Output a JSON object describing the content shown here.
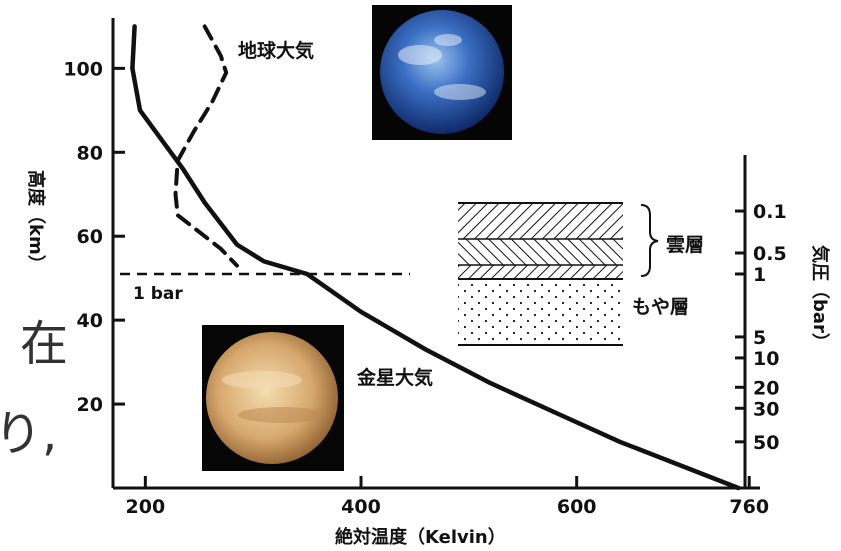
{
  "background_text": {
    "char1": "在",
    "char2": "り,"
  },
  "colors": {
    "ink": "#111111",
    "earth_ocean": "#2f5fb0",
    "venus": "#d9b27a"
  },
  "chart_data": {
    "type": "line",
    "title": "",
    "xlabel": "絶対温度（Kelvin）",
    "ylabel": "高度（km）",
    "y2label": "気圧（bar）",
    "xlim": [
      170,
      770
    ],
    "ylim": [
      0,
      112
    ],
    "x_ticks": [
      200,
      400,
      600,
      760
    ],
    "y_ticks": [
      20,
      40,
      60,
      80,
      100
    ],
    "pressure_ticks": [
      {
        "label": "0.1",
        "alt": 66
      },
      {
        "label": "0.5",
        "alt": 56
      },
      {
        "label": "1",
        "alt": 51
      },
      {
        "label": "5",
        "alt": 36
      },
      {
        "label": "10",
        "alt": 31
      },
      {
        "label": "20",
        "alt": 24
      },
      {
        "label": "30",
        "alt": 19
      },
      {
        "label": "50",
        "alt": 11
      }
    ],
    "series": [
      {
        "name": "金星大気",
        "style": "solid",
        "points": [
          [
            190,
            110
          ],
          [
            188,
            100
          ],
          [
            195,
            90
          ],
          [
            215,
            83
          ],
          [
            235,
            76
          ],
          [
            255,
            68
          ],
          [
            285,
            58
          ],
          [
            310,
            54
          ],
          [
            350,
            51
          ],
          [
            400,
            42
          ],
          [
            460,
            33
          ],
          [
            520,
            25
          ],
          [
            580,
            18
          ],
          [
            640,
            11
          ],
          [
            700,
            5
          ],
          [
            750,
            0
          ]
        ]
      },
      {
        "name": "地球大気",
        "style": "dashed",
        "points": [
          [
            255,
            110
          ],
          [
            270,
            103
          ],
          [
            275,
            99
          ],
          [
            262,
            92
          ],
          [
            245,
            85
          ],
          [
            230,
            78
          ],
          [
            228,
            70
          ],
          [
            230,
            65
          ],
          [
            245,
            62
          ],
          [
            270,
            57
          ],
          [
            285,
            53
          ]
        ]
      }
    ],
    "reference_lines": [
      {
        "label": "1 bar",
        "alt": 51
      }
    ],
    "regions": [
      {
        "label": "雲層",
        "pattern": "hatched"
      },
      {
        "label": "もや層",
        "pattern": "dotted"
      }
    ],
    "images": [
      {
        "name": "earth"
      },
      {
        "name": "venus"
      }
    ]
  }
}
